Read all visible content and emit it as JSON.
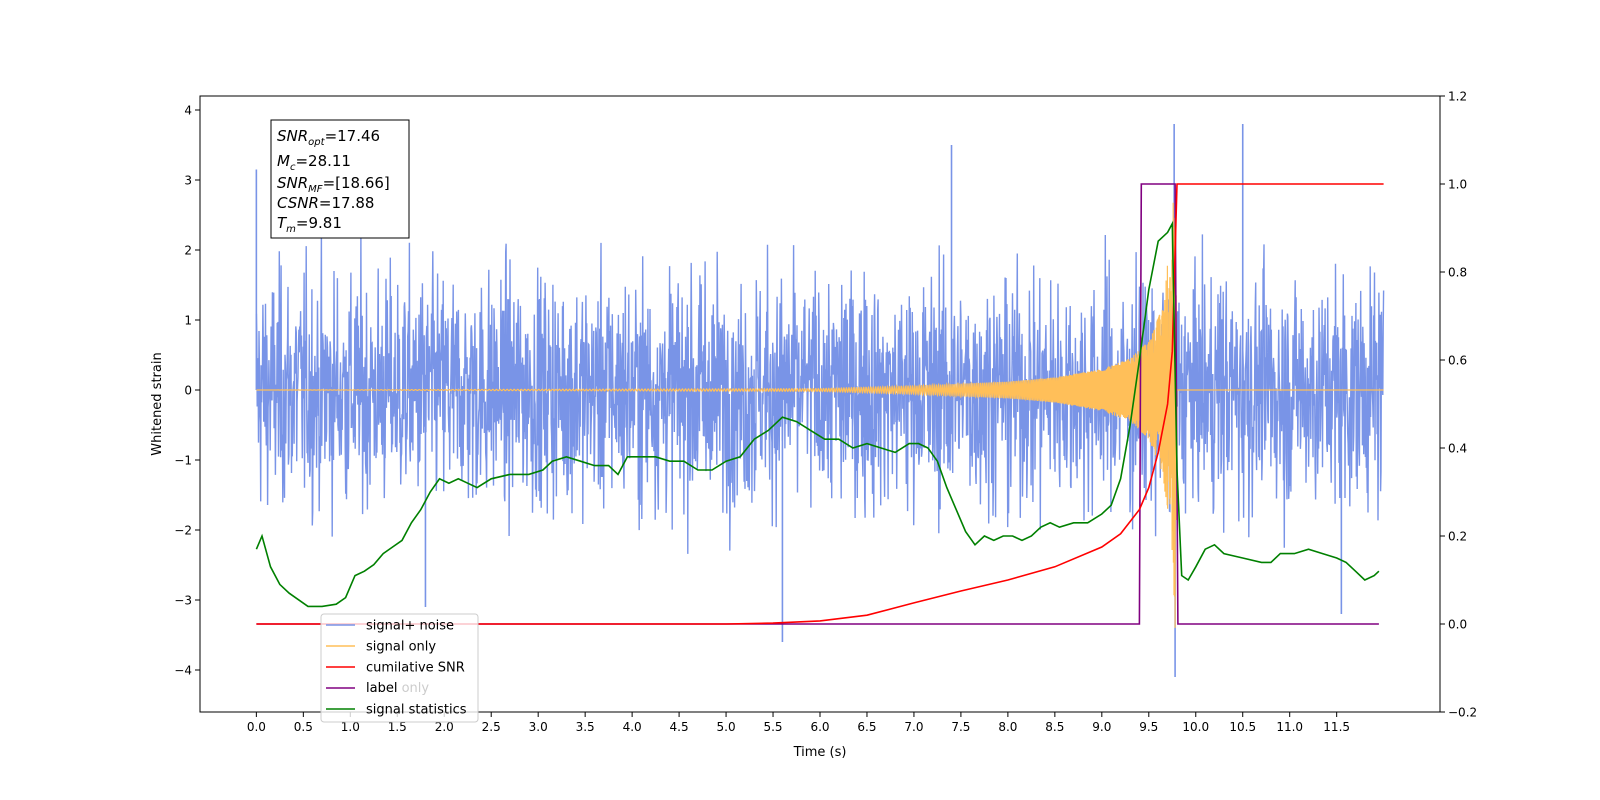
{
  "chart_data": {
    "type": "line",
    "title": "",
    "xlabel": "Time (s)",
    "ylabel_left": "Whitened strain",
    "ylabel_right": "",
    "xlim": [
      -0.6,
      12.6
    ],
    "ylim_left": [
      -4.6,
      4.2
    ],
    "ylim_right": [
      -0.2,
      1.2
    ],
    "x_ticks": [
      "0.0",
      "0.5",
      "1.0",
      "1.5",
      "2.0",
      "2.5",
      "3.0",
      "3.5",
      "4.0",
      "4.5",
      "5.0",
      "5.5",
      "6.0",
      "6.5",
      "7.0",
      "7.5",
      "8.0",
      "8.5",
      "9.0",
      "9.5",
      "10.0",
      "10.5",
      "11.0",
      "11.5"
    ],
    "y_ticks_left": [
      "4",
      "3",
      "2",
      "1",
      "0",
      "−1",
      "−2",
      "−3",
      "−4"
    ],
    "y_ticks_right": [
      "1.2",
      "1.0",
      "0.8",
      "0.6",
      "0.4",
      "0.2",
      "0.0",
      "−0.2"
    ],
    "grid": false,
    "legend_position": "lower-left",
    "annotation": [
      {
        "name": "SNR",
        "sub": "opt",
        "value": "=17.46"
      },
      {
        "name": "M",
        "sub": "c",
        "value": "=28.11"
      },
      {
        "name": "SNR",
        "sub": "MF",
        "value": "=[18.66]"
      },
      {
        "name": "CSNR",
        "sub": "",
        "value": "=17.88"
      },
      {
        "name": "T",
        "sub": "m",
        "value": "=9.81"
      }
    ],
    "series": [
      {
        "name": "signal+ noise",
        "axis": "left",
        "color": "#7994e7",
        "style": "noise band (≈ ±2.5 envelope) with spikes",
        "spikes": [
          [
            0.0,
            3.15
          ],
          [
            1.8,
            -3.1
          ],
          [
            5.6,
            -3.6
          ],
          [
            7.4,
            3.5
          ],
          [
            9.77,
            3.8
          ],
          [
            9.78,
            -4.1
          ],
          [
            10.5,
            3.8
          ],
          [
            11.55,
            -3.2
          ]
        ]
      },
      {
        "name": "signal only",
        "axis": "left",
        "color": "#ffbf59",
        "style": "chirp, amplitude grows to ≈3.4 at 9.78 s",
        "envelope": [
          [
            0.0,
            0.0
          ],
          [
            6.0,
            0.02
          ],
          [
            7.0,
            0.06
          ],
          [
            8.0,
            0.12
          ],
          [
            8.5,
            0.18
          ],
          [
            9.0,
            0.3
          ],
          [
            9.3,
            0.45
          ],
          [
            9.5,
            0.7
          ],
          [
            9.65,
            1.2
          ],
          [
            9.75,
            2.4
          ],
          [
            9.78,
            3.4
          ],
          [
            9.8,
            0.0
          ],
          [
            12.0,
            0.0
          ]
        ]
      },
      {
        "name": "cumilative SNR",
        "axis": "right",
        "color": "#ff0000",
        "points": [
          [
            0.0,
            0.0
          ],
          [
            5.0,
            0.0
          ],
          [
            5.5,
            0.002
          ],
          [
            6.0,
            0.007
          ],
          [
            6.5,
            0.02
          ],
          [
            7.0,
            0.048
          ],
          [
            7.5,
            0.075
          ],
          [
            8.0,
            0.1
          ],
          [
            8.5,
            0.13
          ],
          [
            9.0,
            0.175
          ],
          [
            9.2,
            0.205
          ],
          [
            9.4,
            0.26
          ],
          [
            9.5,
            0.31
          ],
          [
            9.6,
            0.39
          ],
          [
            9.7,
            0.5
          ],
          [
            9.75,
            0.62
          ],
          [
            9.8,
            1.0
          ],
          [
            12.0,
            1.0
          ]
        ]
      },
      {
        "name": "label",
        "axis": "right",
        "color": "#800080",
        "points": [
          [
            0.0,
            0.0
          ],
          [
            9.4,
            0.0
          ],
          [
            9.42,
            1.0
          ],
          [
            9.78,
            1.0
          ],
          [
            9.81,
            0.0
          ],
          [
            11.95,
            0.0
          ]
        ]
      },
      {
        "name": "signal statistics",
        "axis": "right",
        "color": "#008000",
        "points": [
          [
            0.0,
            0.17
          ],
          [
            0.06,
            0.2
          ],
          [
            0.15,
            0.13
          ],
          [
            0.25,
            0.09
          ],
          [
            0.35,
            0.07
          ],
          [
            0.45,
            0.055
          ],
          [
            0.55,
            0.04
          ],
          [
            0.7,
            0.04
          ],
          [
            0.85,
            0.045
          ],
          [
            0.95,
            0.06
          ],
          [
            1.05,
            0.11
          ],
          [
            1.15,
            0.12
          ],
          [
            1.25,
            0.135
          ],
          [
            1.35,
            0.16
          ],
          [
            1.45,
            0.175
          ],
          [
            1.55,
            0.19
          ],
          [
            1.65,
            0.23
          ],
          [
            1.75,
            0.26
          ],
          [
            1.85,
            0.3
          ],
          [
            1.95,
            0.33
          ],
          [
            2.05,
            0.32
          ],
          [
            2.15,
            0.33
          ],
          [
            2.25,
            0.32
          ],
          [
            2.35,
            0.31
          ],
          [
            2.5,
            0.33
          ],
          [
            2.7,
            0.34
          ],
          [
            2.9,
            0.34
          ],
          [
            3.05,
            0.35
          ],
          [
            3.15,
            0.37
          ],
          [
            3.3,
            0.38
          ],
          [
            3.45,
            0.37
          ],
          [
            3.6,
            0.36
          ],
          [
            3.75,
            0.36
          ],
          [
            3.85,
            0.34
          ],
          [
            3.95,
            0.38
          ],
          [
            4.1,
            0.38
          ],
          [
            4.25,
            0.38
          ],
          [
            4.4,
            0.37
          ],
          [
            4.55,
            0.37
          ],
          [
            4.7,
            0.35
          ],
          [
            4.85,
            0.35
          ],
          [
            5.0,
            0.37
          ],
          [
            5.15,
            0.38
          ],
          [
            5.3,
            0.42
          ],
          [
            5.45,
            0.44
          ],
          [
            5.6,
            0.47
          ],
          [
            5.75,
            0.46
          ],
          [
            5.9,
            0.44
          ],
          [
            6.05,
            0.42
          ],
          [
            6.2,
            0.42
          ],
          [
            6.35,
            0.4
          ],
          [
            6.5,
            0.41
          ],
          [
            6.65,
            0.4
          ],
          [
            6.8,
            0.39
          ],
          [
            6.95,
            0.41
          ],
          [
            7.05,
            0.41
          ],
          [
            7.15,
            0.4
          ],
          [
            7.25,
            0.37
          ],
          [
            7.35,
            0.31
          ],
          [
            7.45,
            0.26
          ],
          [
            7.55,
            0.21
          ],
          [
            7.65,
            0.18
          ],
          [
            7.75,
            0.2
          ],
          [
            7.85,
            0.19
          ],
          [
            7.95,
            0.2
          ],
          [
            8.05,
            0.2
          ],
          [
            8.15,
            0.19
          ],
          [
            8.25,
            0.2
          ],
          [
            8.35,
            0.22
          ],
          [
            8.45,
            0.23
          ],
          [
            8.55,
            0.22
          ],
          [
            8.7,
            0.23
          ],
          [
            8.85,
            0.23
          ],
          [
            9.0,
            0.25
          ],
          [
            9.1,
            0.27
          ],
          [
            9.2,
            0.33
          ],
          [
            9.3,
            0.45
          ],
          [
            9.4,
            0.6
          ],
          [
            9.5,
            0.76
          ],
          [
            9.6,
            0.87
          ],
          [
            9.7,
            0.89
          ],
          [
            9.75,
            0.91
          ],
          [
            9.8,
            0.35
          ],
          [
            9.85,
            0.11
          ],
          [
            9.92,
            0.1
          ],
          [
            10.0,
            0.13
          ],
          [
            10.1,
            0.17
          ],
          [
            10.2,
            0.18
          ],
          [
            10.3,
            0.16
          ],
          [
            10.5,
            0.15
          ],
          [
            10.7,
            0.14
          ],
          [
            10.8,
            0.14
          ],
          [
            10.9,
            0.16
          ],
          [
            11.05,
            0.16
          ],
          [
            11.2,
            0.17
          ],
          [
            11.35,
            0.16
          ],
          [
            11.5,
            0.15
          ],
          [
            11.6,
            0.14
          ],
          [
            11.7,
            0.12
          ],
          [
            11.8,
            0.1
          ],
          [
            11.9,
            0.11
          ],
          [
            11.95,
            0.12
          ]
        ]
      },
      {
        "name": "label only",
        "axis": "right",
        "color": "#ffffff",
        "style": "legend entry (mostly hidden)"
      }
    ],
    "legend_entries": [
      "signal+ noise",
      "signal only",
      "cumilative SNR",
      "label",
      "label only",
      "signal statistics"
    ]
  }
}
